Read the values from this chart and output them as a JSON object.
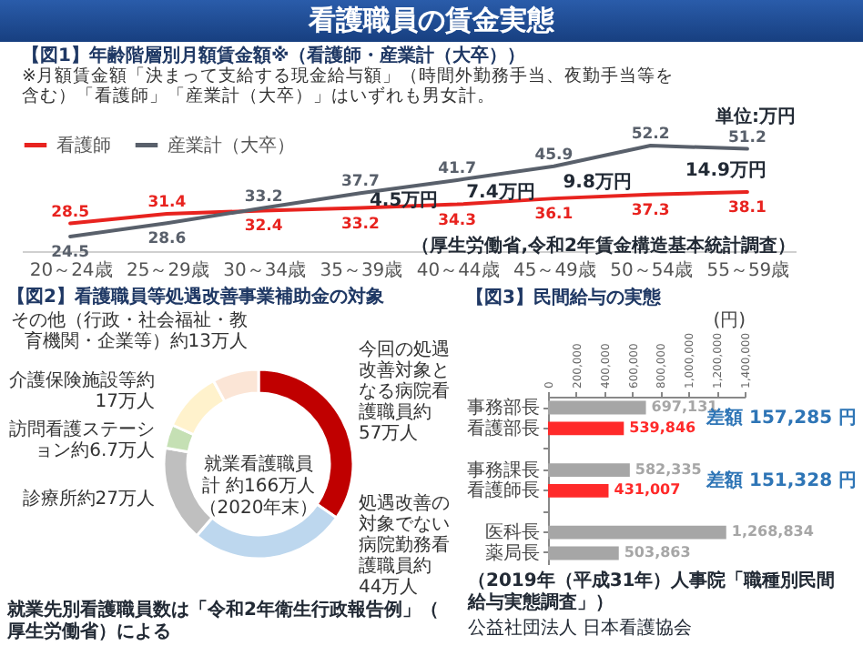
{
  "chart_data": [
    {
      "type": "line",
      "title": "看護職員の賃金実態",
      "subtitle": "【図1】年齢階層別月額賃金額※（看護師・産業計（大卒））",
      "categories": [
        "20～24歳",
        "25～29歳",
        "30～34歳",
        "35～39歳",
        "40～44歳",
        "45～49歳",
        "50～54歳",
        "55～59歳"
      ],
      "series": [
        {
          "name": "看護師",
          "color": "#e8231f",
          "values": [
            28.5,
            31.4,
            32.4,
            33.2,
            34.3,
            36.1,
            37.3,
            38.1
          ]
        },
        {
          "name": "産業計（大卒）",
          "color": "#59606b",
          "values": [
            24.5,
            28.6,
            33.2,
            37.7,
            41.7,
            45.9,
            52.2,
            51.2
          ]
        }
      ],
      "tick_labels": "x",
      "data_labels": true,
      "legend": "top left",
      "annotations": [
        "※月額賃金額「決まって支給する現金給与額」（時間外勤務手当、夜勤手当等を含む）「看護師」「産業計（大卒）」はいずれも男女計。",
        "単位:万円",
        "（厚生労働省,令和2年賃金構造基本統計調査）",
        "4.5万円",
        "7.4万円",
        "9.8万円",
        "14.9万円"
      ]
    },
    {
      "type": "donut",
      "title": "【図2】看護職員等処遇改善事業補助金の対象",
      "categories": [
        "今回の処遇改善対象となる病院看護職員約57万人",
        "処遇改善の対象でない病院勤務看護職員約44万人",
        "診療所約27万人",
        "訪問看護ステーション約6.7万人",
        "介護保険施設等約17万人",
        "その他（行政・社会福祉・教育機関・企業等）約13万人"
      ],
      "values": [
        57,
        44,
        27,
        6.7,
        17,
        13
      ],
      "colors": [
        "#c00000",
        "#bdd7ee",
        "#bfbfbf",
        "#c5e0b4",
        "#fff2cc",
        "#fbe5d6"
      ],
      "annotations": [
        "就業看護職員計 約166万人（2020年末）",
        "就業先別看護職員数は「令和2年衛生行政報告例」（厚生労働省）による"
      ]
    },
    {
      "type": "bar",
      "orientation": "horizontal",
      "title": "【図3】民間給与の実態",
      "categories": [
        "事務部長",
        "看護部長",
        null,
        "事務課長",
        "看護師長",
        null,
        "医科長",
        "薬局長"
      ],
      "values": [
        697131,
        539846,
        null,
        582335,
        431007,
        null,
        1268834,
        503863
      ],
      "value_labels": [
        "697,131",
        "539,846",
        null,
        "582,335",
        "431,007",
        null,
        "1,268,834",
        "503,863"
      ],
      "colors": [
        "#a6a6a6",
        "#ff2a2a",
        "#a6a6a6",
        "#a6a6a6",
        "#ff2a2a",
        "#a6a6a6",
        "#a6a6a6",
        "#a6a6a6"
      ],
      "xlim": [
        0,
        1400000
      ],
      "xticks": [
        {
          "value": 0,
          "label": "0"
        },
        {
          "value": 200000,
          "label": "200,000"
        },
        {
          "value": 400000,
          "label": "400,000"
        },
        {
          "value": 600000,
          "label": "600,000"
        },
        {
          "value": 800000,
          "label": "800,000"
        },
        {
          "value": 1000000,
          "label": "1,000,000"
        },
        {
          "value": 1200000,
          "label": "1,200,000"
        },
        {
          "value": 1400000,
          "label": "1,400,000"
        }
      ],
      "xlabel": "(円)",
      "annotations": [
        "差額 157,285 円",
        "差額 151,328 円",
        "（2019年（平成31年）人事院「職種別民間給与実態調査」）",
        "公益社団法人 日本看護協会"
      ]
    }
  ]
}
